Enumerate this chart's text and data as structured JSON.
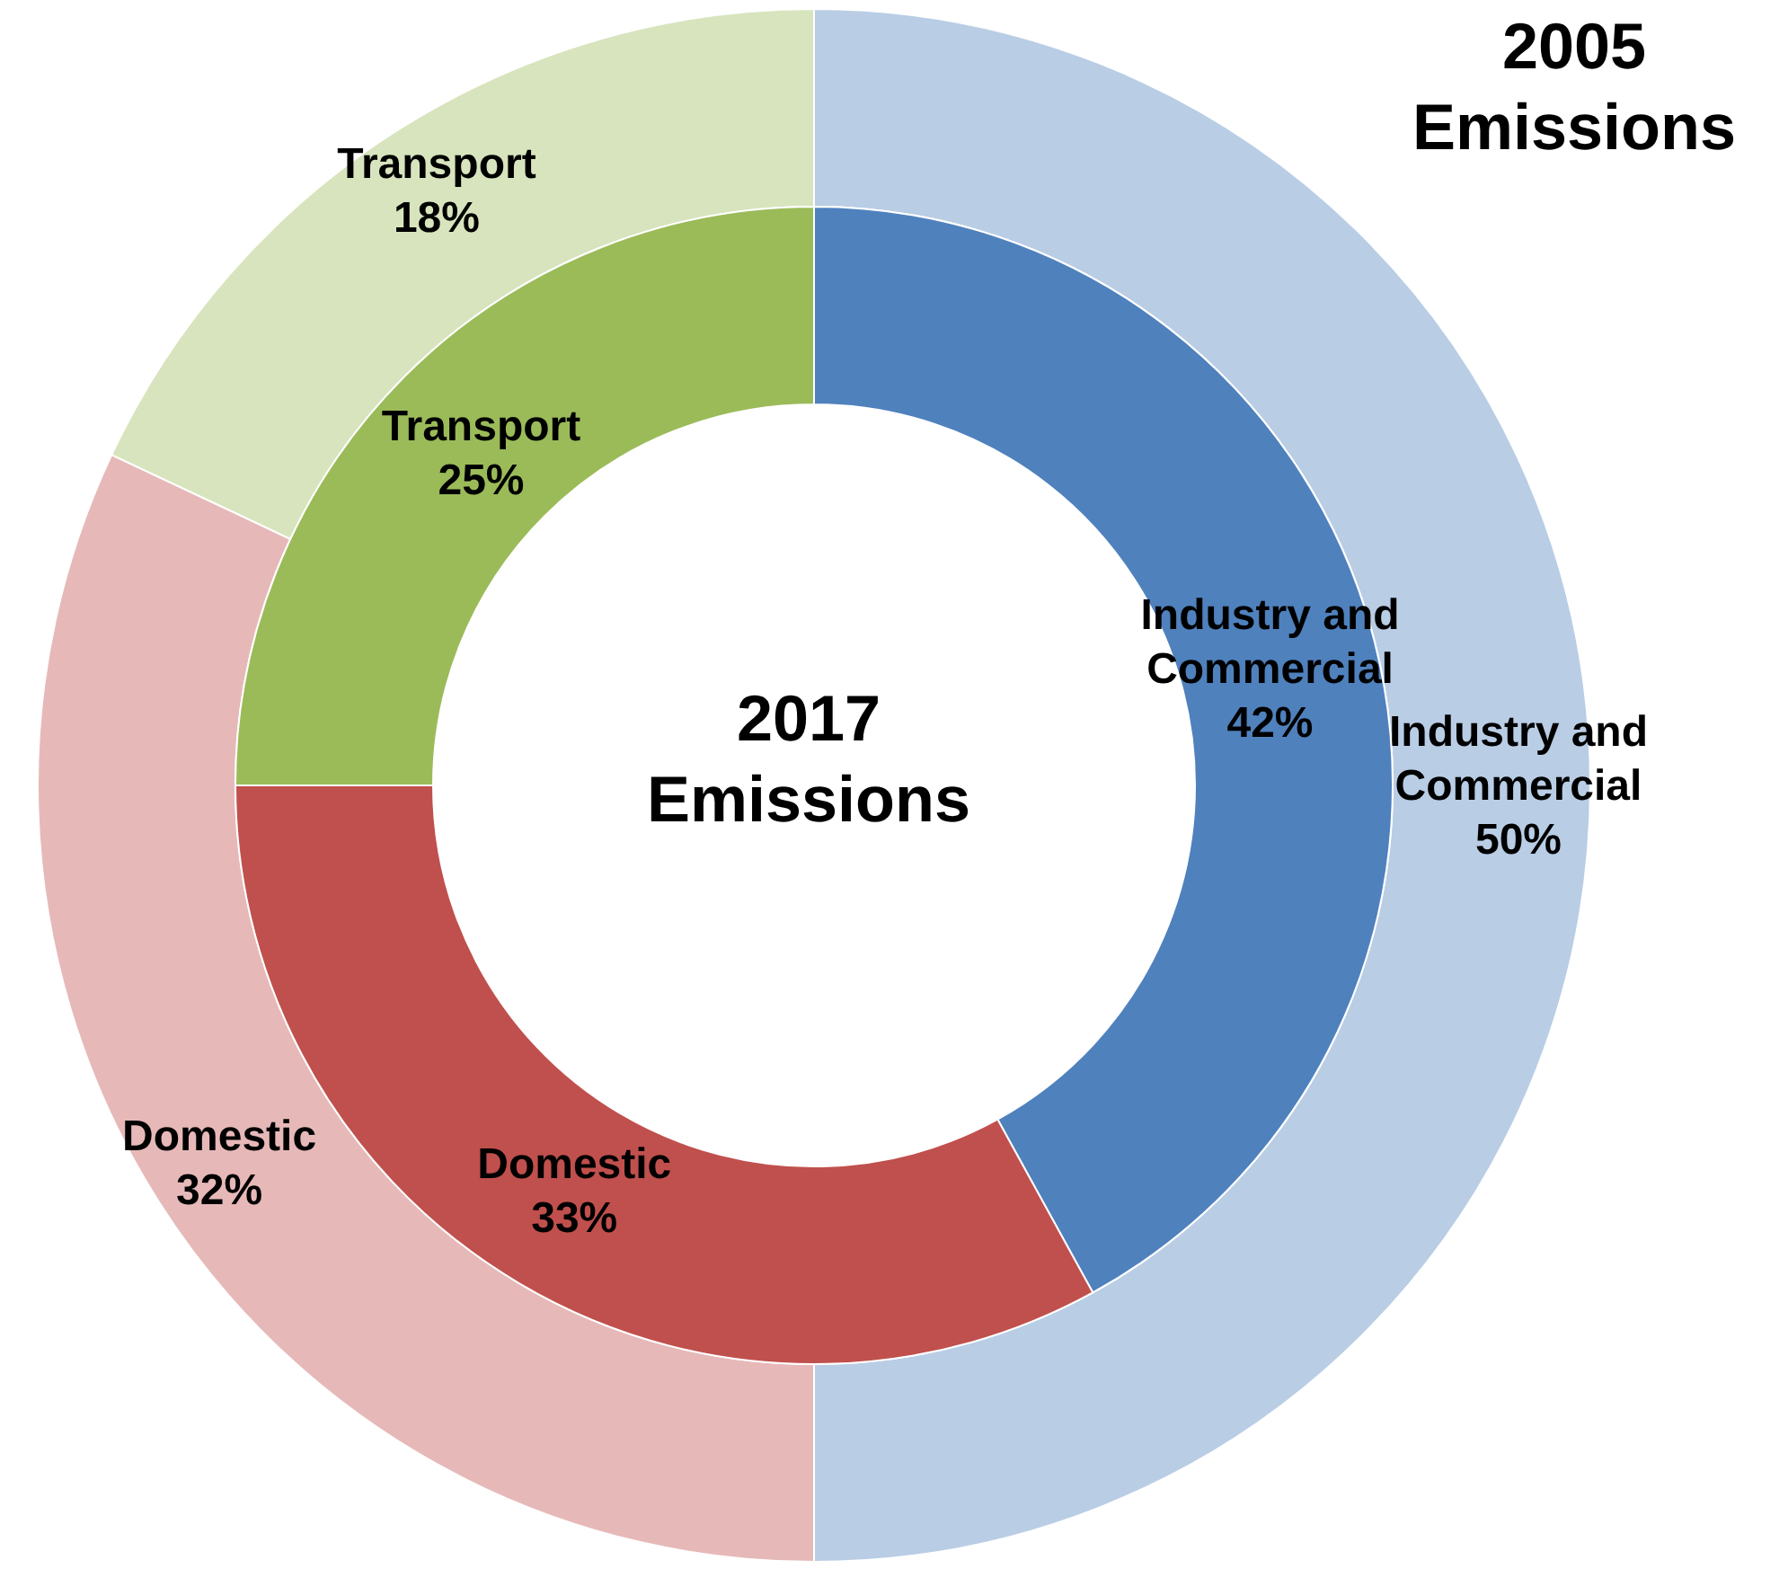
{
  "chart_data": [
    {
      "type": "donut",
      "title": "2005 Emissions",
      "categories": [
        "Industry and Commercial",
        "Domestic",
        "Transport"
      ],
      "values": [
        50,
        32,
        18
      ],
      "value_labels": [
        "50%",
        "32%",
        "18%"
      ],
      "colors": [
        "#b9cde5",
        "#e6b9b8",
        "#d7e4bd"
      ]
    },
    {
      "type": "donut",
      "title": "2017 Emissions",
      "categories": [
        "Industry and Commercial",
        "Domestic",
        "Transport"
      ],
      "values": [
        42,
        33,
        25
      ],
      "value_labels": [
        "42%",
        "33%",
        "25%"
      ],
      "colors": [
        "#4f81bd",
        "#c0504d",
        "#9bbb59"
      ]
    }
  ]
}
